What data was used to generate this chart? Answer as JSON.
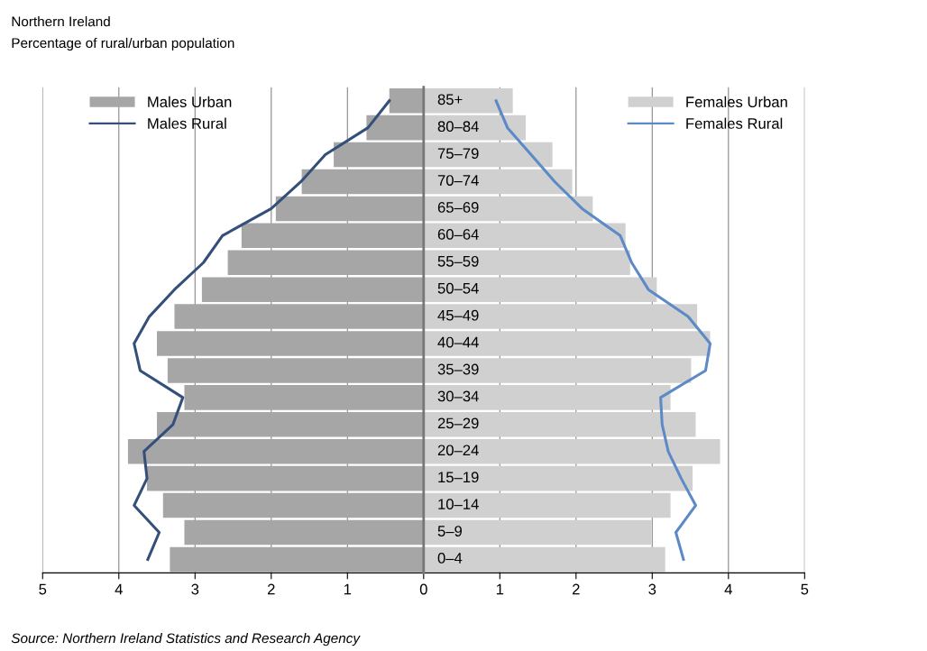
{
  "chart_data": {
    "type": "bar",
    "orientation": "horizontal",
    "stacked": true,
    "title": "Northern Ireland",
    "subtitle": "Percentage of rural/urban population",
    "categories": [
      "85+",
      "80–84",
      "75–79",
      "70–74",
      "65–69",
      "60–64",
      "55–59",
      "50–54",
      "45–49",
      "40–44",
      "35–39",
      "30–34",
      "25–29",
      "20–24",
      "15–19",
      "10–14",
      "5–9",
      "0–4"
    ],
    "series": [
      {
        "name": "Males Urban",
        "color": "#a6a6a6",
        "values": [
          -0.45,
          -0.75,
          -1.18,
          -1.6,
          -1.94,
          -2.39,
          -2.57,
          -2.91,
          -3.27,
          -3.5,
          -3.36,
          -3.14,
          -3.5,
          -3.88,
          -3.63,
          -3.42,
          -3.14,
          -3.33
        ]
      },
      {
        "name": "Males Rural",
        "type": "line",
        "color": "#34507a",
        "values": [
          -0.45,
          -0.73,
          -1.29,
          -1.61,
          -2.0,
          -2.64,
          -2.89,
          -3.27,
          -3.6,
          -3.8,
          -3.72,
          -3.16,
          -3.29,
          -3.67,
          -3.63,
          -3.8,
          -3.47,
          -3.62
        ]
      },
      {
        "name": "Females Urban",
        "color": "#d0d0d0",
        "values": [
          1.17,
          1.34,
          1.69,
          1.95,
          2.22,
          2.65,
          2.71,
          3.06,
          3.59,
          3.76,
          3.51,
          3.24,
          3.57,
          3.89,
          3.53,
          3.24,
          2.99,
          3.17
        ]
      },
      {
        "name": "Females Rural",
        "type": "line",
        "color": "#5b8ac6",
        "values": [
          0.95,
          1.1,
          1.41,
          1.72,
          2.08,
          2.58,
          2.73,
          2.95,
          3.47,
          3.76,
          3.7,
          3.11,
          3.13,
          3.21,
          3.38,
          3.57,
          3.31,
          3.41
        ]
      }
    ],
    "xlim": [
      -5,
      5
    ],
    "xticks": [
      {
        "value": -5,
        "label": "5"
      },
      {
        "value": -4,
        "label": "4"
      },
      {
        "value": -3,
        "label": "3"
      },
      {
        "value": -2,
        "label": "2"
      },
      {
        "value": -1,
        "label": "1"
      },
      0,
      1,
      2,
      3,
      4,
      5
    ],
    "grid": "x",
    "legend": "top",
    "marker": "none",
    "line_style": "solid",
    "annotations": [
      "Source: Northern Ireland Statistics and Research Agency"
    ]
  }
}
